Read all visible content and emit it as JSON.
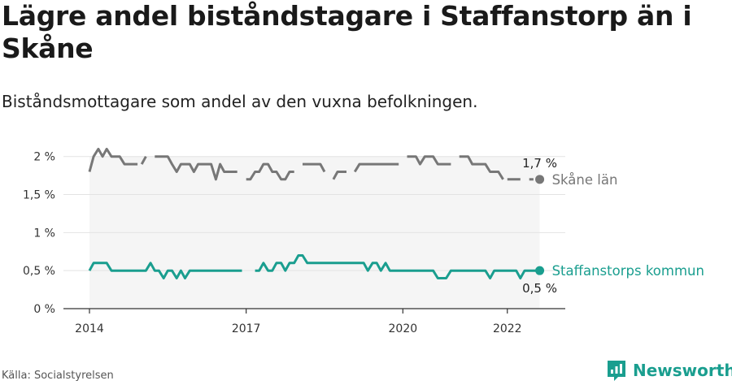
{
  "title": "Lägre andel biståndstagare i Staffanstorp än i Skåne",
  "subtitle": "Biståndsmottagare som andel av den vuxna befolkningen.",
  "source": "Källa: Socialstyrelsen",
  "brand": "Newsworthy",
  "colors": {
    "skane": "#777777",
    "staffanstorp": "#1a9e8f",
    "band": "#f5f5f5",
    "grid": "#e3e3e3",
    "axis": "#333333"
  },
  "icons": {
    "brand": "newsworthy-logo-icon"
  },
  "chart_data": {
    "type": "line",
    "x_range": [
      2014,
      2022.72
    ],
    "ylim": [
      0,
      2.2
    ],
    "y_ticks": [
      {
        "value": 0,
        "label": "0 %"
      },
      {
        "value": 0.5,
        "label": "0,5 %"
      },
      {
        "value": 1,
        "label": "1 %"
      },
      {
        "value": 1.5,
        "label": "1,5 %"
      },
      {
        "value": 2,
        "label": "2 %"
      }
    ],
    "x_ticks": [
      {
        "value": 2014,
        "label": "2014"
      },
      {
        "value": 2017,
        "label": "2017"
      },
      {
        "value": 2020,
        "label": "2020"
      },
      {
        "value": 2022,
        "label": "2022"
      }
    ],
    "grid": true,
    "series": [
      {
        "name": "Skåne län",
        "key": "skane",
        "end_value_label": "1,7 %",
        "segments": [
          [
            [
              2014.0,
              1.8
            ],
            [
              2014.08,
              2.0
            ],
            [
              2014.17,
              2.1
            ],
            [
              2014.25,
              2.0
            ],
            [
              2014.33,
              2.1
            ],
            [
              2014.42,
              2.0
            ],
            [
              2014.5,
              2.0
            ],
            [
              2014.58,
              2.0
            ],
            [
              2014.67,
              1.9
            ],
            [
              2014.75,
              1.9
            ],
            [
              2014.83,
              1.9
            ],
            [
              2014.92,
              1.9
            ]
          ],
          [
            [
              2015.0,
              1.9
            ],
            [
              2015.08,
              2.0
            ]
          ],
          [
            [
              2015.25,
              2.0
            ],
            [
              2015.33,
              2.0
            ],
            [
              2015.42,
              2.0
            ],
            [
              2015.5,
              2.0
            ],
            [
              2015.58,
              1.9
            ],
            [
              2015.67,
              1.8
            ],
            [
              2015.75,
              1.9
            ],
            [
              2015.83,
              1.9
            ],
            [
              2015.92,
              1.9
            ],
            [
              2016.0,
              1.8
            ],
            [
              2016.08,
              1.9
            ],
            [
              2016.17,
              1.9
            ],
            [
              2016.25,
              1.9
            ],
            [
              2016.33,
              1.9
            ],
            [
              2016.42,
              1.7
            ],
            [
              2016.5,
              1.9
            ],
            [
              2016.58,
              1.8
            ],
            [
              2016.67,
              1.8
            ],
            [
              2016.75,
              1.8
            ],
            [
              2016.83,
              1.8
            ]
          ],
          [
            [
              2017.0,
              1.7
            ],
            [
              2017.08,
              1.7
            ],
            [
              2017.17,
              1.8
            ],
            [
              2017.25,
              1.8
            ],
            [
              2017.33,
              1.9
            ],
            [
              2017.42,
              1.9
            ],
            [
              2017.5,
              1.8
            ],
            [
              2017.58,
              1.8
            ],
            [
              2017.67,
              1.7
            ],
            [
              2017.75,
              1.7
            ],
            [
              2017.83,
              1.8
            ],
            [
              2017.92,
              1.8
            ]
          ],
          [
            [
              2018.08,
              1.9
            ],
            [
              2018.17,
              1.9
            ],
            [
              2018.25,
              1.9
            ],
            [
              2018.33,
              1.9
            ],
            [
              2018.42,
              1.9
            ],
            [
              2018.5,
              1.8
            ]
          ],
          [
            [
              2018.67,
              1.7
            ],
            [
              2018.75,
              1.8
            ],
            [
              2018.83,
              1.8
            ],
            [
              2018.92,
              1.8
            ]
          ],
          [
            [
              2019.08,
              1.8
            ],
            [
              2019.17,
              1.9
            ],
            [
              2019.25,
              1.9
            ],
            [
              2019.33,
              1.9
            ],
            [
              2019.42,
              1.9
            ],
            [
              2019.5,
              1.9
            ],
            [
              2019.58,
              1.9
            ],
            [
              2019.67,
              1.9
            ],
            [
              2019.75,
              1.9
            ],
            [
              2019.83,
              1.9
            ],
            [
              2019.92,
              1.9
            ]
          ],
          [
            [
              2020.08,
              2.0
            ],
            [
              2020.17,
              2.0
            ],
            [
              2020.25,
              2.0
            ],
            [
              2020.33,
              1.9
            ],
            [
              2020.42,
              2.0
            ],
            [
              2020.5,
              2.0
            ],
            [
              2020.58,
              2.0
            ],
            [
              2020.67,
              1.9
            ],
            [
              2020.75,
              1.9
            ],
            [
              2020.83,
              1.9
            ],
            [
              2020.92,
              1.9
            ]
          ],
          [
            [
              2021.08,
              2.0
            ],
            [
              2021.17,
              2.0
            ],
            [
              2021.25,
              2.0
            ],
            [
              2021.33,
              1.9
            ],
            [
              2021.42,
              1.9
            ],
            [
              2021.5,
              1.9
            ],
            [
              2021.58,
              1.9
            ],
            [
              2021.67,
              1.8
            ],
            [
              2021.75,
              1.8
            ],
            [
              2021.83,
              1.8
            ],
            [
              2021.92,
              1.7
            ]
          ],
          [
            [
              2022.0,
              1.7
            ],
            [
              2022.08,
              1.7
            ],
            [
              2022.17,
              1.7
            ],
            [
              2022.25,
              1.7
            ]
          ],
          [
            [
              2022.42,
              1.7
            ],
            [
              2022.5,
              1.7
            ]
          ],
          [
            [
              2022.58,
              1.7
            ],
            [
              2022.62,
              1.7
            ]
          ]
        ],
        "last_point": [
          2022.62,
          1.7
        ]
      },
      {
        "name": "Staffanstorps kommun",
        "key": "staffanstorp",
        "end_value_label": "0,5 %",
        "segments": [
          [
            [
              2014.0,
              0.5
            ],
            [
              2014.08,
              0.6
            ],
            [
              2014.17,
              0.6
            ],
            [
              2014.25,
              0.6
            ],
            [
              2014.33,
              0.6
            ],
            [
              2014.42,
              0.5
            ],
            [
              2014.5,
              0.5
            ],
            [
              2014.58,
              0.5
            ],
            [
              2014.67,
              0.5
            ],
            [
              2014.75,
              0.5
            ],
            [
              2014.83,
              0.5
            ],
            [
              2014.92,
              0.5
            ],
            [
              2015.0,
              0.5
            ],
            [
              2015.08,
              0.5
            ],
            [
              2015.17,
              0.6
            ],
            [
              2015.25,
              0.5
            ],
            [
              2015.33,
              0.5
            ],
            [
              2015.42,
              0.4
            ],
            [
              2015.5,
              0.5
            ],
            [
              2015.58,
              0.5
            ],
            [
              2015.67,
              0.4
            ],
            [
              2015.75,
              0.5
            ],
            [
              2015.83,
              0.4
            ],
            [
              2015.92,
              0.5
            ],
            [
              2016.0,
              0.5
            ],
            [
              2016.08,
              0.5
            ],
            [
              2016.17,
              0.5
            ],
            [
              2016.25,
              0.5
            ],
            [
              2016.33,
              0.5
            ],
            [
              2016.42,
              0.5
            ],
            [
              2016.5,
              0.5
            ],
            [
              2016.58,
              0.5
            ],
            [
              2016.67,
              0.5
            ],
            [
              2016.75,
              0.5
            ],
            [
              2016.83,
              0.5
            ],
            [
              2016.92,
              0.5
            ]
          ],
          [
            [
              2017.17,
              0.5
            ],
            [
              2017.25,
              0.5
            ],
            [
              2017.33,
              0.6
            ],
            [
              2017.42,
              0.5
            ],
            [
              2017.5,
              0.5
            ],
            [
              2017.58,
              0.6
            ],
            [
              2017.67,
              0.6
            ],
            [
              2017.75,
              0.5
            ],
            [
              2017.83,
              0.6
            ],
            [
              2017.92,
              0.6
            ],
            [
              2018.0,
              0.7
            ],
            [
              2018.08,
              0.7
            ],
            [
              2018.17,
              0.6
            ],
            [
              2018.25,
              0.6
            ],
            [
              2018.33,
              0.6
            ],
            [
              2018.42,
              0.6
            ],
            [
              2018.5,
              0.6
            ],
            [
              2018.58,
              0.6
            ],
            [
              2018.67,
              0.6
            ],
            [
              2018.75,
              0.6
            ],
            [
              2018.83,
              0.6
            ],
            [
              2018.92,
              0.6
            ],
            [
              2019.0,
              0.6
            ],
            [
              2019.08,
              0.6
            ],
            [
              2019.17,
              0.6
            ],
            [
              2019.25,
              0.6
            ],
            [
              2019.33,
              0.5
            ],
            [
              2019.42,
              0.6
            ],
            [
              2019.5,
              0.6
            ],
            [
              2019.58,
              0.5
            ],
            [
              2019.67,
              0.6
            ],
            [
              2019.75,
              0.5
            ],
            [
              2019.83,
              0.5
            ],
            [
              2019.92,
              0.5
            ],
            [
              2020.0,
              0.5
            ],
            [
              2020.08,
              0.5
            ],
            [
              2020.17,
              0.5
            ],
            [
              2020.25,
              0.5
            ],
            [
              2020.33,
              0.5
            ],
            [
              2020.42,
              0.5
            ],
            [
              2020.5,
              0.5
            ],
            [
              2020.58,
              0.5
            ],
            [
              2020.67,
              0.4
            ],
            [
              2020.75,
              0.4
            ],
            [
              2020.83,
              0.4
            ],
            [
              2020.92,
              0.5
            ],
            [
              2021.0,
              0.5
            ],
            [
              2021.08,
              0.5
            ],
            [
              2021.17,
              0.5
            ],
            [
              2021.25,
              0.5
            ],
            [
              2021.33,
              0.5
            ],
            [
              2021.42,
              0.5
            ],
            [
              2021.5,
              0.5
            ],
            [
              2021.58,
              0.5
            ],
            [
              2021.67,
              0.4
            ],
            [
              2021.75,
              0.5
            ],
            [
              2021.83,
              0.5
            ],
            [
              2021.92,
              0.5
            ],
            [
              2022.0,
              0.5
            ],
            [
              2022.08,
              0.5
            ],
            [
              2022.17,
              0.5
            ],
            [
              2022.25,
              0.4
            ],
            [
              2022.33,
              0.5
            ],
            [
              2022.42,
              0.5
            ],
            [
              2022.5,
              0.5
            ],
            [
              2022.62,
              0.5
            ]
          ]
        ],
        "last_point": [
          2022.62,
          0.5
        ]
      }
    ]
  }
}
